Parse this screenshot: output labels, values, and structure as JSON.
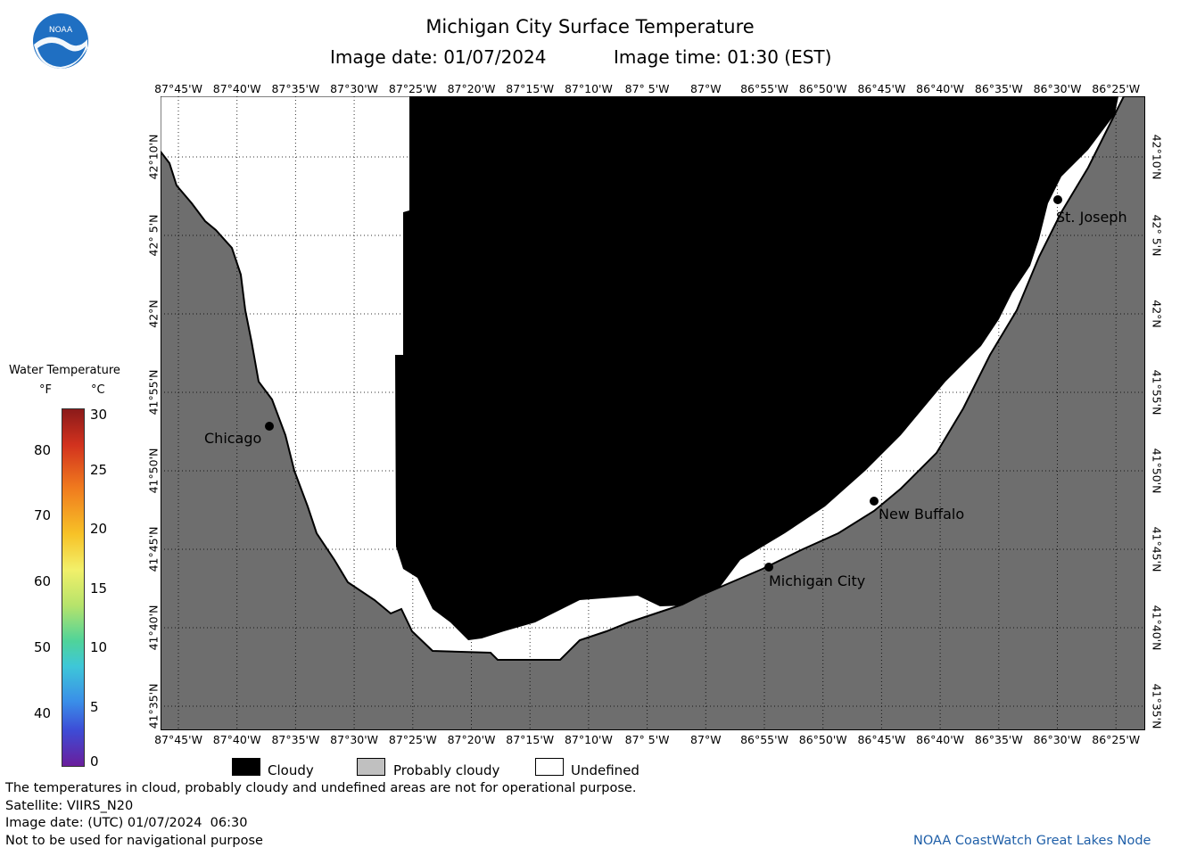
{
  "header": {
    "title": "Michigan City Surface Temperature",
    "date_label": "Image date: 01/07/2024",
    "time_label": "Image time: 01:30 (EST)"
  },
  "logo": {
    "text": "NOAA",
    "icon": "noaa-logo"
  },
  "map": {
    "lon_labels": [
      "87°45'W",
      "87°40'W",
      "87°35'W",
      "87°30'W",
      "87°25'W",
      "87°20'W",
      "87°15'W",
      "87°10'W",
      "87° 5'W",
      "87°W",
      "86°55'W",
      "86°50'W",
      "86°45'W",
      "86°40'W",
      "86°35'W",
      "86°30'W",
      "86°25'W"
    ],
    "lat_labels": [
      "42°10'N",
      "42° 5'N",
      "42°N",
      "41°55'N",
      "41°50'N",
      "41°45'N",
      "41°40'N",
      "41°35'N"
    ],
    "cities": [
      {
        "name": "Chicago"
      },
      {
        "name": "St. Joseph"
      },
      {
        "name": "New Buffalo"
      },
      {
        "name": "Michigan City"
      }
    ],
    "colors": {
      "land": "#6e6e6e",
      "cloudy": "#000000",
      "undefined": "#ffffff"
    }
  },
  "legend": {
    "title": "Water Temperature",
    "unit_f": "°F",
    "unit_c": "°C",
    "f_ticks": [
      "80",
      "70",
      "60",
      "50",
      "40"
    ],
    "c_ticks": [
      "30",
      "25",
      "20",
      "15",
      "10",
      "5",
      "0"
    ]
  },
  "categories": [
    {
      "label": "Cloudy",
      "color": "#000000"
    },
    {
      "label": "Probably cloudy",
      "color": "#c0c0c0"
    },
    {
      "label": "Undefined",
      "color": "#ffffff"
    }
  ],
  "footer": {
    "line1": "The temperatures in cloud, probably cloudy and undefined areas are not for operational purpose.",
    "line2": "Satellite: VIIRS_N20",
    "line3": "Image date: (UTC) 01/07/2024  06:30",
    "line4": "Not to be used for navigational purpose",
    "credit": "NOAA CoastWatch Great Lakes Node"
  }
}
